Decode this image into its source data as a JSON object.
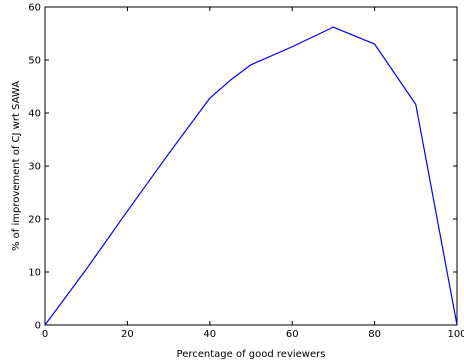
{
  "chart_data": {
    "type": "line",
    "title": "",
    "xlabel": "Percentage of good reviewers",
    "ylabel": "% of improvement of CJ wrt SAWA",
    "xlim": [
      0,
      100
    ],
    "ylim": [
      0,
      60
    ],
    "x_ticks": [
      0,
      20,
      40,
      60,
      80,
      100
    ],
    "y_ticks": [
      0,
      10,
      20,
      30,
      40,
      50,
      60
    ],
    "x_tick_labels": [
      "0",
      "20",
      "40",
      "60",
      "80",
      "100"
    ],
    "y_tick_labels": [
      "0",
      "10",
      "20",
      "30",
      "40",
      "50",
      "60"
    ],
    "grid": false,
    "legend": "none",
    "series": [
      {
        "color": "#0000ff",
        "x": [
          0,
          10,
          20,
          30,
          40,
          45,
          50,
          60,
          70,
          80,
          90,
          100
        ],
        "y": [
          0,
          10.5,
          21.5,
          32.3,
          42.8,
          46.2,
          49.1,
          52.5,
          56.2,
          53,
          41.6,
          0
        ]
      }
    ]
  }
}
